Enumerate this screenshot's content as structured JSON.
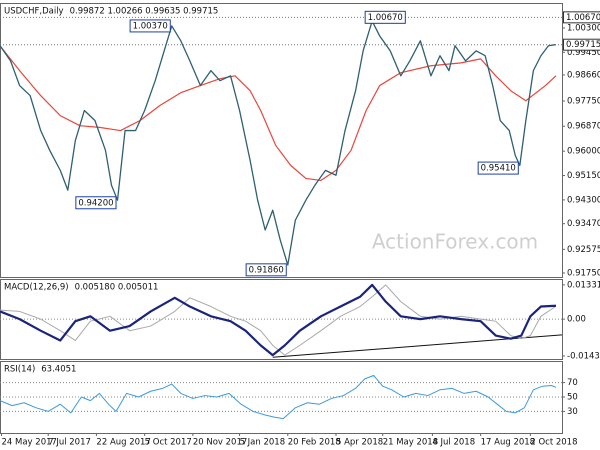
{
  "chart_data": [
    {
      "type": "line",
      "title": "USDCHF,Daily",
      "header": "0.99872 1.00266 0.99635 0.99715",
      "watermark": "ActionForex.com",
      "xlim": [
        0,
        373
      ],
      "ylim": [
        0.9161,
        1.0117
      ],
      "yticks": [
        {
          "value": 1.003,
          "label": "1.00300"
        },
        {
          "value": 0.9945,
          "label": "0.99450"
        },
        {
          "value": 0.9866,
          "label": "0.98660"
        },
        {
          "value": 0.9775,
          "label": "0.97750"
        },
        {
          "value": 0.9687,
          "label": "0.96870"
        },
        {
          "value": 0.96,
          "label": "0.96000"
        },
        {
          "value": 0.9515,
          "label": "0.95150"
        },
        {
          "value": 0.943,
          "label": "0.94300"
        },
        {
          "value": 0.9347,
          "label": "0.93470"
        },
        {
          "value": 0.92575,
          "label": "0.92575"
        },
        {
          "value": 0.9175,
          "label": "0.91750"
        }
      ],
      "price_levels": [
        {
          "value": 1.0067,
          "label": "1.00670"
        },
        {
          "value": 0.99715,
          "label": "0.99715"
        }
      ],
      "annotations": [
        {
          "x": 114,
          "y": 1.0037,
          "label": "1.00370"
        },
        {
          "x": 78,
          "y": 0.942,
          "label": "0.94200"
        },
        {
          "x": 191,
          "y": 0.9186,
          "label": "0.91860"
        },
        {
          "x": 270,
          "y": 1.0067,
          "label": "1.00670"
        },
        {
          "x": 345,
          "y": 0.9541,
          "label": "0.95410"
        }
      ],
      "series": [
        {
          "color": "#2f5f73",
          "x": [
            0,
            7,
            13,
            20,
            27,
            33,
            40,
            45,
            50,
            56,
            63,
            70,
            74,
            78,
            83,
            90,
            96,
            103,
            110,
            114,
            120,
            126,
            133,
            140,
            146,
            153,
            159,
            166,
            171,
            176,
            181,
            186,
            191,
            196,
            203,
            209,
            216,
            223,
            229,
            236,
            241,
            247,
            252,
            259,
            266,
            272,
            279,
            286,
            292,
            298,
            302,
            309,
            316,
            322,
            327,
            332,
            338,
            342,
            345,
            349,
            354,
            359,
            364,
            369
          ],
          "values": [
            0.9968,
            0.9915,
            0.9829,
            0.9794,
            0.9672,
            0.9603,
            0.9533,
            0.9464,
            0.9637,
            0.9742,
            0.9707,
            0.9603,
            0.9481,
            0.9429,
            0.9672,
            0.9672,
            0.9742,
            0.9846,
            0.9968,
            1.0037,
            0.9985,
            0.9915,
            0.9829,
            0.9881,
            0.9846,
            0.9863,
            0.9742,
            0.9568,
            0.9429,
            0.9325,
            0.9394,
            0.929,
            0.9203,
            0.9359,
            0.9429,
            0.9481,
            0.9533,
            0.9516,
            0.9672,
            0.9811,
            0.995,
            1.0054,
            1.0002,
            0.995,
            0.9863,
            0.9915,
            0.9985,
            0.9863,
            0.9933,
            0.9881,
            0.9968,
            0.9915,
            0.995,
            0.9933,
            0.9829,
            0.9707,
            0.9672,
            0.9585,
            0.955,
            0.9707,
            0.9881,
            0.9933,
            0.9968,
            0.9972
          ]
        },
        {
          "color": "#e8463a",
          "x": [
            0,
            13,
            27,
            40,
            53,
            66,
            80,
            93,
            106,
            120,
            133,
            146,
            156,
            166,
            173,
            183,
            193,
            203,
            213,
            223,
            233,
            243,
            252,
            266,
            286,
            306,
            319,
            329,
            339,
            349,
            362,
            369
          ],
          "values": [
            0.9968,
            0.9881,
            0.9794,
            0.9724,
            0.9689,
            0.9683,
            0.9672,
            0.9707,
            0.9759,
            0.9804,
            0.9829,
            0.9853,
            0.9863,
            0.9811,
            0.9742,
            0.962,
            0.955,
            0.9505,
            0.9498,
            0.9533,
            0.9603,
            0.9742,
            0.9829,
            0.9874,
            0.9898,
            0.9908,
            0.9922,
            0.9863,
            0.9811,
            0.9776,
            0.9829,
            0.9863
          ]
        }
      ]
    },
    {
      "type": "line",
      "title": "MACD(12,26,9)",
      "header": "0.005180 0.005011",
      "xlim": [
        0,
        373
      ],
      "ylim": [
        -0.0155,
        0.0156
      ],
      "yticks": [
        0.013319,
        {
          "value": 0,
          "label": "0.00"
        },
        -0.014323
      ],
      "zero_line": true,
      "trendline": {
        "x": [
          181,
          373
        ],
        "values": [
          -0.0148,
          -0.0061
        ]
      },
      "series": [
        {
          "color": "#1a237e",
          "x": [
            0,
            13,
            27,
            40,
            50,
            60,
            73,
            86,
            100,
            116,
            126,
            140,
            153,
            163,
            173,
            181,
            189,
            199,
            213,
            226,
            239,
            247,
            256,
            266,
            279,
            292,
            306,
            319,
            329,
            339,
            346,
            352,
            359,
            369
          ],
          "values": [
            0.003,
            0,
            -0.0045,
            -0.0083,
            -0.0008,
            0.0011,
            -0.0045,
            -0.0027,
            0.003,
            0.0083,
            0.0049,
            0.0011,
            -0.0008,
            -0.0045,
            -0.0102,
            -0.014,
            -0.0102,
            -0.0045,
            0.0011,
            0.0049,
            0.0087,
            0.0133,
            0.0068,
            0.0011,
            0,
            0.0011,
            0,
            -0.0008,
            -0.0064,
            -0.0076,
            -0.0064,
            0.0011,
            0.0049,
            0.0052
          ]
        },
        {
          "color": "#a9a9a9",
          "x": [
            0,
            13,
            27,
            40,
            50,
            60,
            73,
            86,
            100,
            116,
            126,
            140,
            153,
            163,
            173,
            181,
            189,
            199,
            213,
            226,
            239,
            247,
            256,
            266,
            279,
            292,
            306,
            319,
            329,
            339,
            346,
            352,
            359,
            369
          ],
          "values": [
            0.0035,
            0.003,
            0,
            -0.0045,
            -0.0083,
            -0.0008,
            0.0011,
            -0.0045,
            -0.0027,
            0.003,
            0.0083,
            0.0049,
            0.0011,
            -0.0008,
            -0.0045,
            -0.0102,
            -0.014,
            -0.0102,
            -0.0045,
            0.0011,
            0.0049,
            0.0087,
            0.0133,
            0.0068,
            0.0011,
            0,
            0.0011,
            0,
            -0.0008,
            -0.0064,
            -0.0076,
            -0.0064,
            0.0011,
            0.005
          ]
        }
      ]
    },
    {
      "type": "line",
      "title": "RSI(14)",
      "header": "63.4051",
      "xlim": [
        0,
        373
      ],
      "ylim": [
        0,
        100
      ],
      "yticks": [
        70,
        50,
        30
      ],
      "grid": true,
      "xticks": [
        {
          "value": 1,
          "label": "24 May 2017"
        },
        {
          "value": 32,
          "label": "7 Jul 2017"
        },
        {
          "value": 64,
          "label": "22 Aug 2017"
        },
        {
          "value": 96,
          "label": "5 Oct 2017"
        },
        {
          "value": 128,
          "label": "20 Nov 2017"
        },
        {
          "value": 159,
          "label": "5 Jan 2018"
        },
        {
          "value": 191,
          "label": "20 Feb 2018"
        },
        {
          "value": 223,
          "label": "5 Apr 2018"
        },
        {
          "value": 254,
          "label": "21 May 2018"
        },
        {
          "value": 287,
          "label": "4 Jul 2018"
        },
        {
          "value": 319,
          "label": "17 Aug 2018"
        },
        {
          "value": 352,
          "label": "2 Oct 2018"
        }
      ],
      "series": [
        {
          "color": "#3d9ae0",
          "x": [
            0,
            8,
            16,
            24,
            32,
            40,
            47,
            54,
            60,
            66,
            72,
            77,
            84,
            92,
            100,
            108,
            114,
            120,
            128,
            136,
            144,
            152,
            160,
            168,
            176,
            182,
            188,
            196,
            204,
            212,
            220,
            228,
            236,
            242,
            248,
            254,
            260,
            268,
            276,
            284,
            292,
            300,
            308,
            316,
            324,
            330,
            336,
            342,
            348,
            354,
            360,
            366,
            369
          ],
          "values": [
            45,
            38,
            42,
            35,
            30,
            40,
            28,
            50,
            45,
            55,
            40,
            30,
            55,
            50,
            58,
            62,
            68,
            55,
            48,
            52,
            50,
            55,
            40,
            30,
            25,
            22,
            20,
            35,
            42,
            40,
            48,
            52,
            62,
            75,
            80,
            65,
            60,
            50,
            55,
            52,
            60,
            62,
            55,
            58,
            50,
            40,
            30,
            28,
            35,
            60,
            65,
            66,
            63.4
          ]
        }
      ]
    }
  ]
}
